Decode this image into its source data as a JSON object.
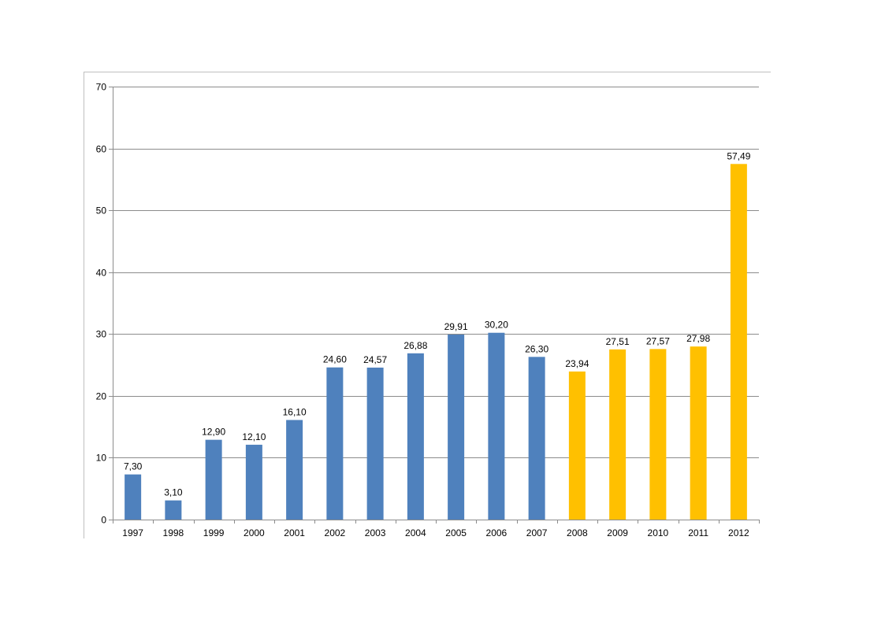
{
  "chart_data": {
    "type": "bar",
    "title": "",
    "xlabel": "",
    "ylabel": "",
    "ylim": [
      0,
      70
    ],
    "yticks": [
      "0",
      "10",
      "20",
      "30",
      "40",
      "50",
      "60",
      "70"
    ],
    "grid": true,
    "legend": "none",
    "categories": [
      "1997",
      "1998",
      "1999",
      "2000",
      "2001",
      "2002",
      "2003",
      "2004",
      "2005",
      "2006",
      "2007",
      "2008",
      "2009",
      "2010",
      "2011",
      "2012"
    ],
    "values": [
      7.3,
      3.1,
      12.9,
      12.1,
      16.1,
      24.6,
      24.57,
      26.88,
      29.91,
      30.2,
      26.3,
      23.94,
      27.51,
      27.57,
      27.98,
      57.49
    ],
    "value_labels": [
      "7,30",
      "3,10",
      "12,90",
      "12,10",
      "16,10",
      "24,60",
      "24,57",
      "26,88",
      "29,91",
      "30,20",
      "26,30",
      "23,94",
      "27,51",
      "27,57",
      "27,98",
      "57,49"
    ],
    "bar_colors": [
      "#4F81BD",
      "#4F81BD",
      "#4F81BD",
      "#4F81BD",
      "#4F81BD",
      "#4F81BD",
      "#4F81BD",
      "#4F81BD",
      "#4F81BD",
      "#4F81BD",
      "#4F81BD",
      "#FFC000",
      "#FFC000",
      "#FFC000",
      "#FFC000",
      "#FFC000"
    ],
    "colors": {
      "gridline": "#8C8C8C",
      "axis": "#8C8C8C",
      "frame": "#BFBFBF"
    }
  }
}
